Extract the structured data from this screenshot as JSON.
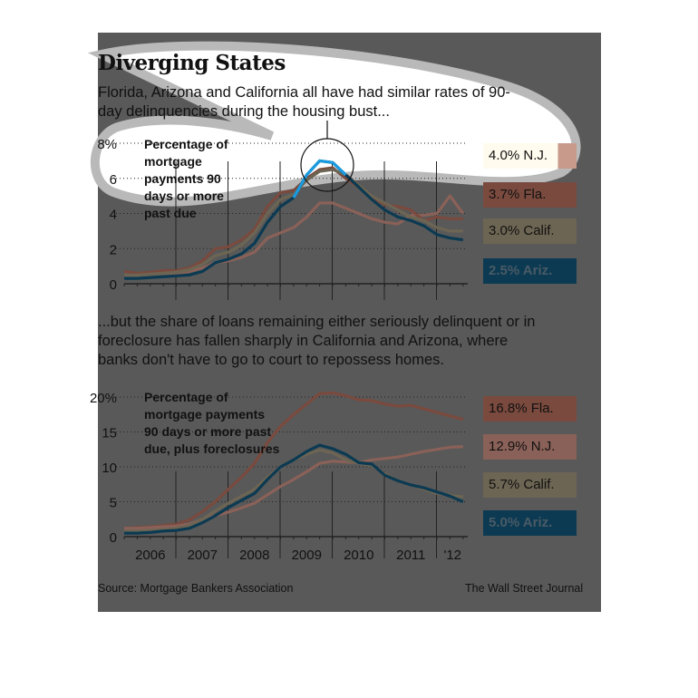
{
  "title": "Diverging States",
  "subtitle_top": "Florida, Arizona and California all have had similar rates of 90-day delinquencies during the housing bust...",
  "subtitle_bottom": "...but the share of loans remaining either seriously delinquent or in foreclosure has fallen sharply in California and Arizona, where banks don't have to go to court to repossess homes.",
  "source": "Source: Mortgage Bankers Association",
  "credit": "The Wall Street Journal",
  "colors": {
    "fla": "#7a4a3e",
    "nj": "#8a6158",
    "calif": "#6d6553",
    "ariz": "#0b3a52",
    "highlight": "#1a9be0",
    "background": "#595959"
  },
  "chart_data": [
    {
      "type": "line",
      "title": "Percentage of mortgage payments 90 days or more past due",
      "x_start": 2006.0,
      "x_step": 0.25,
      "xlim": [
        2006,
        2012.6
      ],
      "ylim": [
        0,
        8
      ],
      "yticks": [
        "0",
        "2",
        "4",
        "6",
        "8%"
      ],
      "ytick_values": [
        0,
        2,
        4,
        6,
        8
      ],
      "series": [
        {
          "name": "N.J.",
          "key": "nj",
          "label": "4.0% N.J.",
          "values": [
            0.5,
            0.5,
            0.55,
            0.6,
            0.6,
            0.7,
            0.9,
            1.2,
            1.3,
            1.5,
            1.8,
            2.6,
            2.9,
            3.2,
            3.8,
            4.6,
            4.6,
            4.3,
            4.0,
            3.7,
            3.5,
            3.4,
            3.9,
            3.9,
            4.0,
            5.0,
            4.0
          ]
        },
        {
          "name": "Fla.",
          "key": "fla",
          "label": "3.7% Fla.",
          "values": [
            0.7,
            0.6,
            0.65,
            0.75,
            0.75,
            0.9,
            1.3,
            2.0,
            2.1,
            2.5,
            3.1,
            4.4,
            5.2,
            5.3,
            6.0,
            6.5,
            6.6,
            6.0,
            5.5,
            4.9,
            4.5,
            4.4,
            4.2,
            3.6,
            3.8,
            3.7,
            3.7
          ]
        },
        {
          "name": "Calif.",
          "key": "calif",
          "label": "3.0% Calif.",
          "values": [
            0.5,
            0.5,
            0.55,
            0.6,
            0.65,
            0.8,
            1.1,
            1.6,
            1.8,
            2.2,
            2.9,
            4.0,
            4.8,
            5.1,
            5.9,
            6.4,
            6.5,
            6.2,
            5.6,
            5.0,
            4.6,
            4.2,
            3.8,
            3.6,
            3.2,
            3.0,
            3.0
          ]
        },
        {
          "name": "Ariz.",
          "key": "ariz",
          "label": "2.5% Ariz.",
          "values": [
            0.3,
            0.3,
            0.35,
            0.4,
            0.45,
            0.5,
            0.7,
            1.2,
            1.4,
            1.7,
            2.3,
            3.5,
            4.4,
            4.9,
            6.2,
            7.0,
            6.9,
            6.2,
            5.5,
            4.8,
            4.2,
            3.8,
            3.6,
            3.3,
            2.8,
            2.6,
            2.5
          ]
        }
      ],
      "annotation": "circled peak of Arizona 2009"
    },
    {
      "type": "line",
      "title": "Percentage of mortgage payments 90 days or more past due, plus foreclosures",
      "x_start": 2006.0,
      "x_step": 0.25,
      "xlim": [
        2006,
        2012.6
      ],
      "ylim": [
        0,
        20
      ],
      "yticks": [
        "0",
        "5",
        "10",
        "15",
        "20%"
      ],
      "ytick_values": [
        0,
        5,
        10,
        15,
        20
      ],
      "xticks": [
        "2006",
        "2007",
        "2008",
        "2009",
        "2010",
        "2011",
        "'12"
      ],
      "series": [
        {
          "name": "Fla.",
          "key": "fla",
          "label": "16.8% Fla.",
          "values": [
            1.2,
            1.3,
            1.4,
            1.6,
            1.8,
            2.4,
            3.6,
            5.0,
            6.8,
            8.5,
            10.5,
            13.5,
            15.8,
            17.5,
            19.0,
            20.5,
            20.6,
            20.2,
            19.6,
            19.5,
            19.0,
            18.7,
            18.8,
            18.3,
            17.8,
            17.3,
            16.8
          ]
        },
        {
          "name": "N.J.",
          "key": "nj",
          "label": "12.9% N.J.",
          "values": [
            1.2,
            1.2,
            1.3,
            1.4,
            1.5,
            1.8,
            2.5,
            3.0,
            3.5,
            4.1,
            4.8,
            6.0,
            7.2,
            8.2,
            9.3,
            10.5,
            10.8,
            10.7,
            10.6,
            11.0,
            11.2,
            11.4,
            11.8,
            12.2,
            12.5,
            12.8,
            12.9
          ]
        },
        {
          "name": "Calif.",
          "key": "calif",
          "label": "5.7% Calif.",
          "values": [
            0.8,
            0.8,
            0.9,
            1.0,
            1.2,
            1.6,
            2.5,
            3.7,
            4.8,
            5.8,
            6.8,
            8.5,
            10.0,
            11.0,
            11.8,
            12.4,
            12.0,
            11.0,
            10.5,
            10.2,
            9.0,
            8.0,
            7.4,
            6.8,
            6.2,
            5.9,
            5.7
          ]
        },
        {
          "name": "Ariz.",
          "key": "ariz",
          "label": "5.0% Ariz.",
          "values": [
            0.5,
            0.5,
            0.6,
            0.8,
            0.9,
            1.2,
            2.0,
            3.0,
            4.2,
            5.2,
            6.2,
            8.2,
            10.0,
            11.0,
            12.2,
            13.1,
            12.6,
            11.8,
            10.6,
            10.4,
            8.8,
            8.0,
            7.4,
            7.0,
            6.4,
            5.8,
            5.0
          ]
        }
      ]
    }
  ]
}
